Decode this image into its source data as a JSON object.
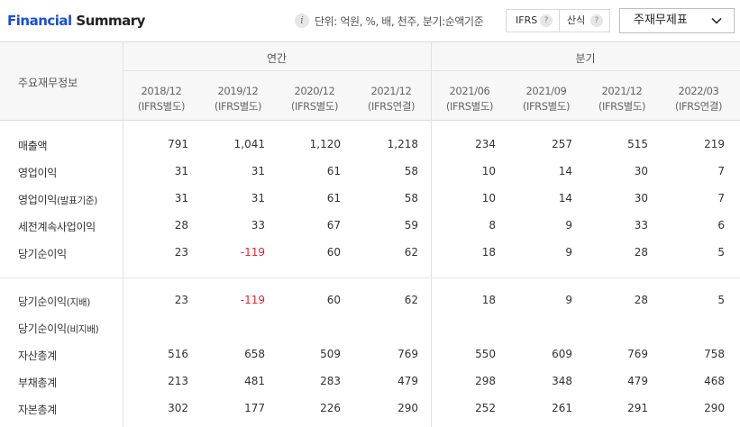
{
  "header": {
    "title_part1": "Financial",
    "title_part2": " Summary",
    "unit_text": "단위: 억원, %, 배, 천주, 분기:순액기준",
    "toggle": {
      "ifrs": "IFRS",
      "standard": "산식",
      "help": "?"
    },
    "dropdown": {
      "label": "주재무제표"
    },
    "info_icon": "i"
  },
  "table": {
    "row_header_label": "주요재무정보",
    "groups": [
      "연간",
      "분기"
    ],
    "columns": [
      {
        "period": "2018/12",
        "basis": "(IFRS별도)"
      },
      {
        "period": "2019/12",
        "basis": "(IFRS별도)"
      },
      {
        "period": "2020/12",
        "basis": "(IFRS별도)"
      },
      {
        "period": "2021/12",
        "basis": "(IFRS연결)"
      },
      {
        "period": "2021/06",
        "basis": "(IFRS별도)"
      },
      {
        "period": "2021/09",
        "basis": "(IFRS별도)"
      },
      {
        "period": "2021/12",
        "basis": "(IFRS별도)"
      },
      {
        "period": "2022/03",
        "basis": "(IFRS연결)"
      }
    ],
    "rows": [
      {
        "label": "매출액",
        "label_small": "",
        "values": [
          "791",
          "1,041",
          "1,120",
          "1,218",
          "234",
          "257",
          "515",
          "219"
        ],
        "negative": [
          false,
          false,
          false,
          false,
          false,
          false,
          false,
          false
        ]
      },
      {
        "label": "영업이익",
        "label_small": "",
        "values": [
          "31",
          "31",
          "61",
          "58",
          "10",
          "14",
          "30",
          "7"
        ],
        "negative": [
          false,
          false,
          false,
          false,
          false,
          false,
          false,
          false
        ]
      },
      {
        "label": "영업이익",
        "label_small": "(발표기준)",
        "values": [
          "31",
          "31",
          "61",
          "58",
          "10",
          "14",
          "30",
          "7"
        ],
        "negative": [
          false,
          false,
          false,
          false,
          false,
          false,
          false,
          false
        ]
      },
      {
        "label": "세전계속사업이익",
        "label_small": "",
        "values": [
          "28",
          "33",
          "67",
          "59",
          "8",
          "9",
          "33",
          "6"
        ],
        "negative": [
          false,
          false,
          false,
          false,
          false,
          false,
          false,
          false
        ]
      },
      {
        "label": "당기순이익",
        "label_small": "",
        "values": [
          "23",
          "-119",
          "60",
          "62",
          "18",
          "9",
          "28",
          "5"
        ],
        "negative": [
          false,
          true,
          false,
          false,
          false,
          false,
          false,
          false
        ]
      },
      {
        "label": "당기순이익",
        "label_small": "(지배)",
        "values": [
          "23",
          "-119",
          "60",
          "62",
          "18",
          "9",
          "28",
          "5"
        ],
        "negative": [
          false,
          true,
          false,
          false,
          false,
          false,
          false,
          false
        ]
      },
      {
        "label": "당기순이익",
        "label_small": "(비지배)",
        "values": [
          "",
          "",
          "",
          "",
          "",
          "",
          "",
          ""
        ],
        "negative": [
          false,
          false,
          false,
          false,
          false,
          false,
          false,
          false
        ]
      },
      {
        "label": "자산총계",
        "label_small": "",
        "values": [
          "516",
          "658",
          "509",
          "769",
          "550",
          "609",
          "769",
          "758"
        ],
        "negative": [
          false,
          false,
          false,
          false,
          false,
          false,
          false,
          false
        ]
      },
      {
        "label": "부채총계",
        "label_small": "",
        "values": [
          "213",
          "481",
          "283",
          "479",
          "298",
          "348",
          "479",
          "468"
        ],
        "negative": [
          false,
          false,
          false,
          false,
          false,
          false,
          false,
          false
        ]
      },
      {
        "label": "자본총계",
        "label_small": "",
        "values": [
          "302",
          "177",
          "226",
          "290",
          "252",
          "261",
          "291",
          "290"
        ],
        "negative": [
          false,
          false,
          false,
          false,
          false,
          false,
          false,
          false
        ]
      }
    ]
  }
}
